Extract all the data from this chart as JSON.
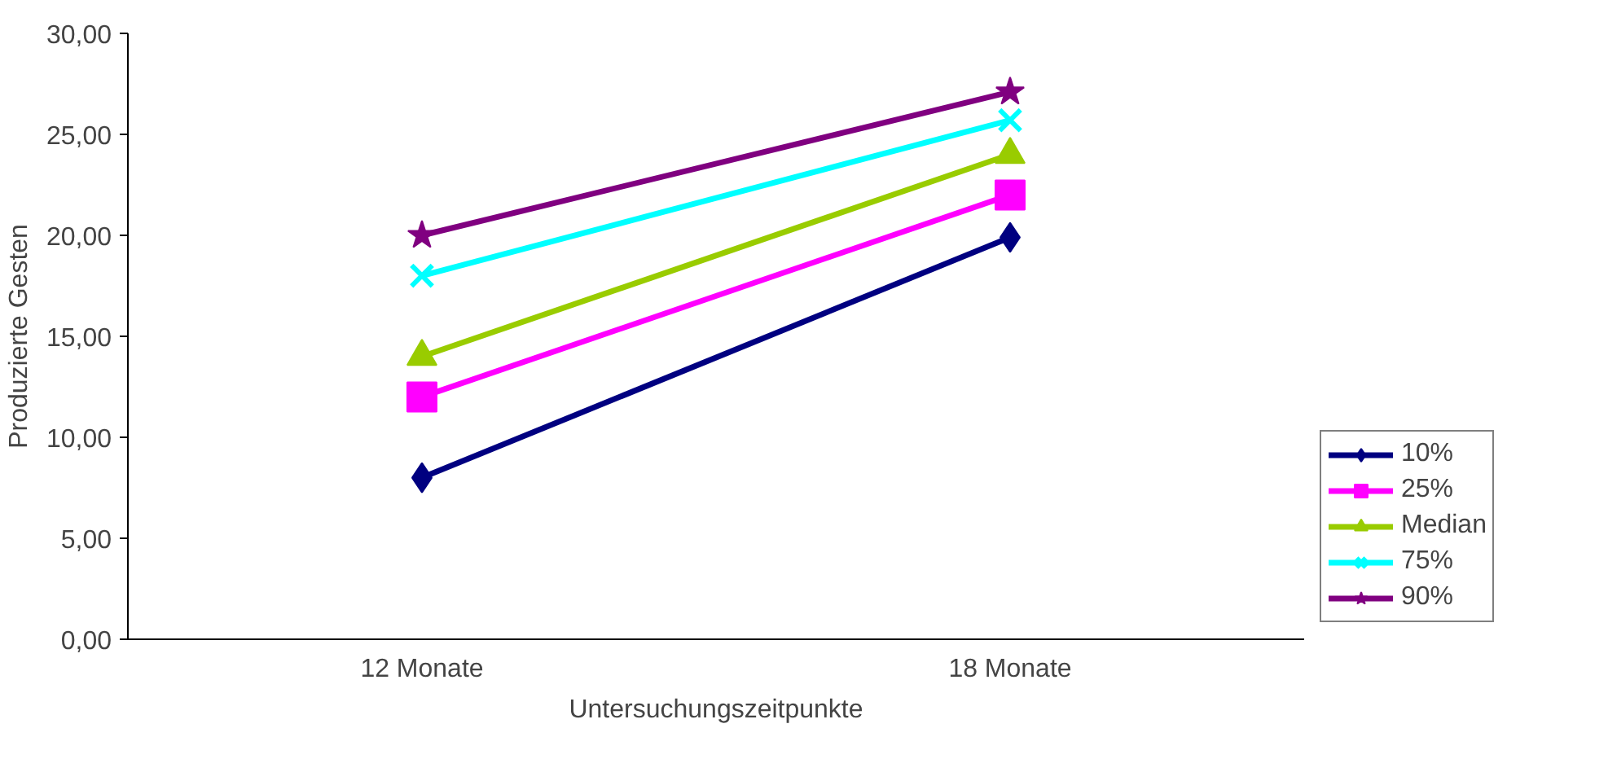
{
  "chart_data": {
    "type": "line",
    "xlabel": "Untersuchungszeitpunkte",
    "ylabel": "Produzierte Gesten",
    "categories": [
      "12 Monate",
      "18 Monate"
    ],
    "series": [
      {
        "name": "10%",
        "color": "#000080",
        "marker": "diamond",
        "values": [
          8.0,
          19.9
        ]
      },
      {
        "name": "25%",
        "color": "#ff00ff",
        "marker": "square",
        "values": [
          12.0,
          22.0
        ]
      },
      {
        "name": "Median",
        "color": "#99cc00",
        "marker": "triangle",
        "values": [
          14.0,
          24.0
        ]
      },
      {
        "name": "75%",
        "color": "#00ffff",
        "marker": "cross",
        "values": [
          18.0,
          25.7
        ]
      },
      {
        "name": "90%",
        "color": "#800080",
        "marker": "star",
        "values": [
          20.0,
          27.1
        ]
      }
    ],
    "ylim": [
      0,
      30
    ],
    "yticks": [
      {
        "value": 0,
        "label": "0,00"
      },
      {
        "value": 5,
        "label": "5,00"
      },
      {
        "value": 10,
        "label": "10,00"
      },
      {
        "value": 15,
        "label": "15,00"
      },
      {
        "value": 20,
        "label": "20,00"
      },
      {
        "value": 25,
        "label": "25,00"
      },
      {
        "value": 30,
        "label": "30,00"
      }
    ],
    "grid": false,
    "legend": "right",
    "line_style": "solid"
  }
}
